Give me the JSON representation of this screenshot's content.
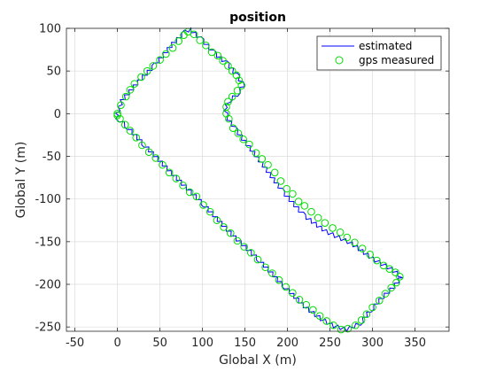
{
  "chart_data": {
    "type": "line",
    "title": "position",
    "xlabel": "Global X (m)",
    "ylabel": "Global Y (m)",
    "xlim": [
      -60,
      390
    ],
    "ylim": [
      -255,
      100
    ],
    "xticks": [
      -50,
      0,
      50,
      100,
      150,
      200,
      250,
      300,
      350
    ],
    "yticks": [
      -250,
      -200,
      -150,
      -100,
      -50,
      0,
      50,
      100
    ],
    "grid": true,
    "legend_position": "top-right",
    "colors": {
      "estimated": "#0000ff",
      "gps": "#00dd00",
      "grid": "#dcdcdc",
      "axis": "#262626"
    },
    "series": [
      {
        "name": "estimated",
        "style": "line",
        "waypoints": [
          [
            0,
            0
          ],
          [
            5,
            15
          ],
          [
            25,
            38
          ],
          [
            45,
            58
          ],
          [
            65,
            82
          ],
          [
            80,
            96
          ],
          [
            85,
            99
          ],
          [
            100,
            86
          ],
          [
            115,
            70
          ],
          [
            130,
            58
          ],
          [
            142,
            43
          ],
          [
            148,
            33
          ],
          [
            140,
            22
          ],
          [
            130,
            14
          ],
          [
            127,
            7
          ],
          [
            128,
            -3
          ],
          [
            140,
            -20
          ],
          [
            165,
            -52
          ],
          [
            195,
            -92
          ],
          [
            220,
            -120
          ],
          [
            245,
            -138
          ],
          [
            275,
            -152
          ],
          [
            300,
            -170
          ],
          [
            322,
            -182
          ],
          [
            334,
            -191
          ],
          [
            325,
            -203
          ],
          [
            312,
            -215
          ],
          [
            297,
            -231
          ],
          [
            285,
            -246
          ],
          [
            270,
            -253
          ],
          [
            255,
            -249
          ],
          [
            240,
            -241
          ],
          [
            220,
            -226
          ],
          [
            195,
            -201
          ],
          [
            165,
            -170
          ],
          [
            135,
            -142
          ],
          [
            100,
            -105
          ],
          [
            65,
            -71
          ],
          [
            30,
            -35
          ],
          [
            10,
            -14
          ],
          [
            0,
            -5
          ],
          [
            -2,
            0
          ]
        ]
      },
      {
        "name": "gps measured",
        "style": "marker-circle",
        "points": [
          [
            0,
            0
          ],
          [
            4,
            10
          ],
          [
            10,
            20
          ],
          [
            15,
            28
          ],
          [
            20,
            35
          ],
          [
            28,
            43
          ],
          [
            35,
            50
          ],
          [
            42,
            56
          ],
          [
            50,
            63
          ],
          [
            57,
            70
          ],
          [
            65,
            77
          ],
          [
            72,
            85
          ],
          [
            78,
            92
          ],
          [
            83,
            96
          ],
          [
            90,
            93
          ],
          [
            97,
            86
          ],
          [
            104,
            80
          ],
          [
            111,
            72
          ],
          [
            118,
            68
          ],
          [
            124,
            62
          ],
          [
            130,
            56
          ],
          [
            135,
            50
          ],
          [
            140,
            45
          ],
          [
            143,
            39
          ],
          [
            146,
            33
          ],
          [
            141,
            27
          ],
          [
            135,
            20
          ],
          [
            130,
            14
          ],
          [
            128,
            8
          ],
          [
            128,
            0
          ],
          [
            131,
            -6
          ],
          [
            136,
            -17
          ],
          [
            142,
            -23
          ],
          [
            148,
            -30
          ],
          [
            155,
            -36
          ],
          [
            163,
            -46
          ],
          [
            170,
            -53
          ],
          [
            177,
            -60
          ],
          [
            185,
            -69
          ],
          [
            192,
            -79
          ],
          [
            199,
            -88
          ],
          [
            206,
            -94
          ],
          [
            213,
            -103
          ],
          [
            220,
            -108
          ],
          [
            228,
            -115
          ],
          [
            236,
            -122
          ],
          [
            244,
            -128
          ],
          [
            253,
            -134
          ],
          [
            262,
            -139
          ],
          [
            270,
            -145
          ],
          [
            279,
            -151
          ],
          [
            288,
            -158
          ],
          [
            297,
            -165
          ],
          [
            305,
            -172
          ],
          [
            313,
            -178
          ],
          [
            320,
            -182
          ],
          [
            327,
            -186
          ],
          [
            332,
            -191
          ],
          [
            328,
            -198
          ],
          [
            322,
            -204
          ],
          [
            315,
            -211
          ],
          [
            308,
            -219
          ],
          [
            300,
            -227
          ],
          [
            293,
            -235
          ],
          [
            287,
            -242
          ],
          [
            280,
            -248
          ],
          [
            271,
            -252
          ],
          [
            263,
            -253
          ],
          [
            254,
            -248
          ],
          [
            246,
            -243
          ],
          [
            238,
            -237
          ],
          [
            230,
            -230
          ],
          [
            222,
            -224
          ],
          [
            214,
            -218
          ],
          [
            206,
            -210
          ],
          [
            198,
            -203
          ],
          [
            190,
            -195
          ],
          [
            182,
            -187
          ],
          [
            174,
            -180
          ],
          [
            165,
            -171
          ],
          [
            157,
            -163
          ],
          [
            149,
            -156
          ],
          [
            141,
            -149
          ],
          [
            133,
            -140
          ],
          [
            125,
            -133
          ],
          [
            117,
            -125
          ],
          [
            109,
            -115
          ],
          [
            101,
            -107
          ],
          [
            93,
            -97
          ],
          [
            85,
            -92
          ],
          [
            77,
            -84
          ],
          [
            69,
            -76
          ],
          [
            61,
            -69
          ],
          [
            53,
            -60
          ],
          [
            45,
            -52
          ],
          [
            37,
            -45
          ],
          [
            29,
            -37
          ],
          [
            22,
            -28
          ],
          [
            15,
            -20
          ],
          [
            9,
            -13
          ],
          [
            3,
            -6
          ],
          [
            0,
            -2
          ]
        ]
      }
    ]
  }
}
